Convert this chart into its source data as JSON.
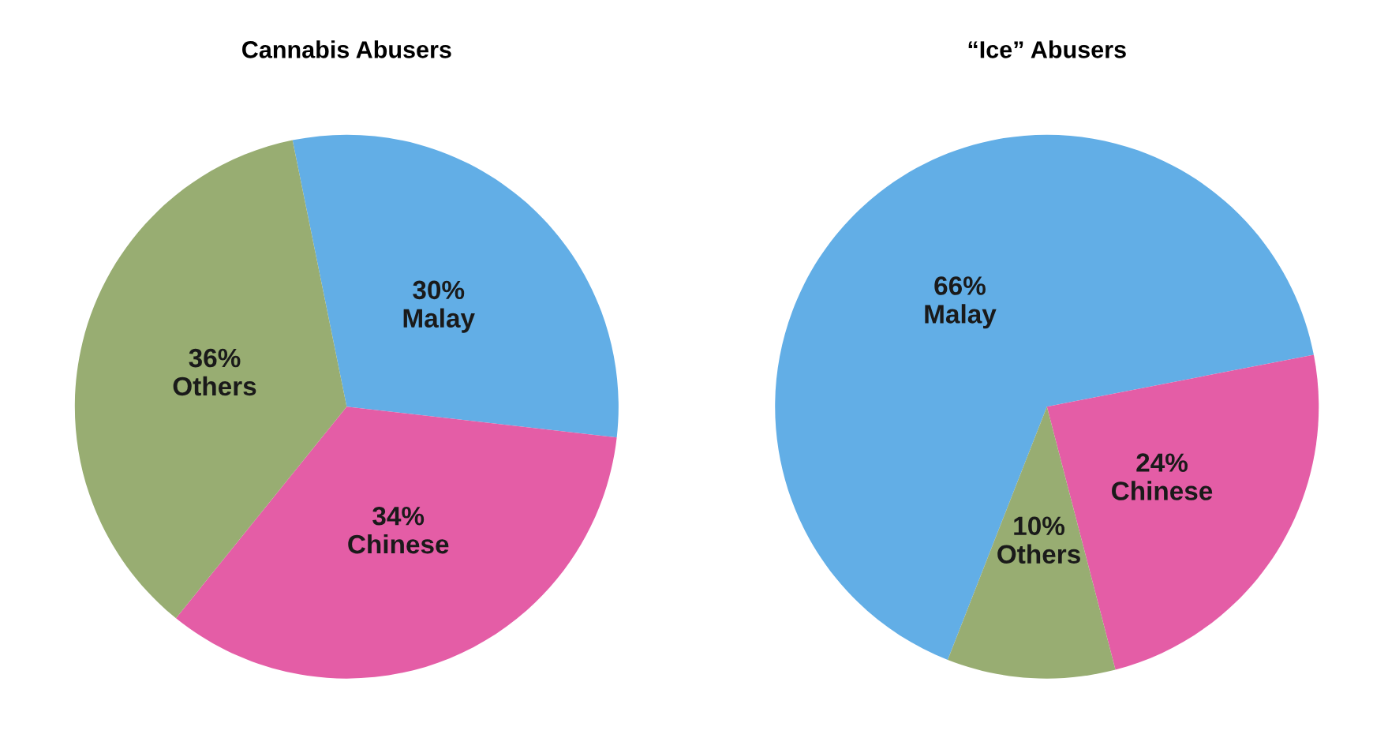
{
  "chart_data": [
    {
      "type": "pie",
      "title": "Cannabis Abusers",
      "categories": [
        "Malay",
        "Chinese",
        "Others"
      ],
      "values": [
        30,
        34,
        36
      ],
      "value_labels": [
        "30%",
        "34%",
        "36%"
      ],
      "colors": [
        "#62aee6",
        "#e45da6",
        "#98ad72"
      ]
    },
    {
      "type": "pie",
      "title": "“Ice” Abusers",
      "categories": [
        "Malay",
        "Chinese",
        "Others"
      ],
      "values": [
        66,
        24,
        10
      ],
      "value_labels": [
        "66%",
        "24%",
        "10%"
      ],
      "colors": [
        "#62aee6",
        "#e45da6",
        "#98ad72"
      ]
    }
  ]
}
